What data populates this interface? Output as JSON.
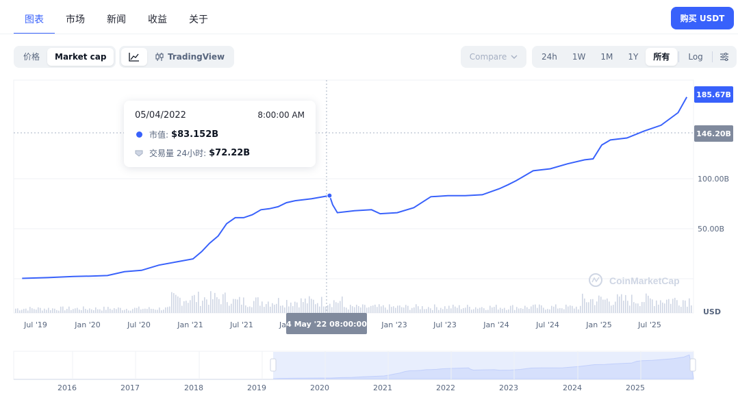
{
  "nav": {
    "tabs": [
      {
        "label": "图表",
        "active": true
      },
      {
        "label": "市场"
      },
      {
        "label": "新闻"
      },
      {
        "label": "收益"
      },
      {
        "label": "关于"
      }
    ],
    "buy_label": "购买 USDT"
  },
  "toolbar": {
    "metric_options": [
      "价格",
      "Market cap"
    ],
    "metric_selected": "Market cap",
    "chart_tools": [
      "line-chart-icon",
      "TradingView"
    ],
    "tradingview_label": "TradingView",
    "compare_label": "Compare",
    "ranges": [
      "24h",
      "1W",
      "1M",
      "1Y",
      "所有"
    ],
    "range_selected": "所有",
    "log_label": "Log",
    "settings_icon": "sliders-icon"
  },
  "tooltip": {
    "date": "05/04/2022",
    "time": "8:00:00 AM",
    "market_cap_label": "市值:",
    "market_cap_value": "$83.152B",
    "volume_label": "交易量 24小时:",
    "volume_value": "$72.22B"
  },
  "crosshair_label": "4 May '22 08:00:00",
  "watermark": "CoinMarketCap",
  "colors": {
    "accent": "#3861fb",
    "line": "#3861fb",
    "grid": "#eff2f5",
    "volume": "#cfd6e4",
    "current_badge": "#3861fb",
    "marker_badge": "#808a9d"
  },
  "chart_data": {
    "type": "line",
    "title": "",
    "xlabel": "",
    "ylabel": "USD",
    "y_ticks": [
      {
        "label": "100.00B",
        "value": 100
      },
      {
        "label": "50.00B",
        "value": 50
      }
    ],
    "x_ticks": [
      "Jul '19",
      "Jan '20",
      "Jul '20",
      "Jan '21",
      "Jul '21",
      "Ja",
      "Jan '23",
      "Jul '23",
      "Jan '24",
      "Jul '24",
      "Jan '25",
      "Jul '25"
    ],
    "current_value_label": "185.67B",
    "marker_value_label": "146.20B",
    "hover_point": {
      "x": "2022-05-04",
      "value": 83.152
    },
    "series": [
      {
        "unit": "billion USD",
        "x": [
          "2019-05",
          "2019-08",
          "2019-11",
          "2020-01",
          "2020-03",
          "2020-05",
          "2020-07",
          "2020-09",
          "2020-11",
          "2021-01",
          "2021-02",
          "2021-03",
          "2021-04",
          "2021-05",
          "2021-06",
          "2021-07",
          "2021-08",
          "2021-09",
          "2021-10",
          "2021-11",
          "2021-12",
          "2022-01",
          "2022-03",
          "2022-05-04",
          "2022-05-15",
          "2022-06",
          "2022-08",
          "2022-10",
          "2022-11",
          "2023-01",
          "2023-03",
          "2023-05",
          "2023-07",
          "2023-09",
          "2023-11",
          "2024-01",
          "2024-02",
          "2024-03",
          "2024-05",
          "2024-07",
          "2024-09",
          "2024-11",
          "2024-12",
          "2025-01",
          "2025-02",
          "2025-04",
          "2025-06",
          "2025-08",
          "2025-10",
          "2025-11"
        ],
        "values": [
          2.3,
          3.0,
          4.1,
          4.5,
          5.0,
          8.7,
          10.0,
          15.0,
          18.0,
          21.0,
          28.0,
          36.0,
          43.0,
          55.0,
          61.0,
          61.0,
          64.0,
          69.0,
          70.0,
          72.0,
          76.0,
          78.0,
          80.0,
          83.152,
          74.0,
          66.0,
          68.0,
          69.0,
          65.0,
          66.0,
          71.0,
          82.0,
          83.0,
          83.0,
          84.0,
          90.0,
          94.0,
          98.0,
          108.0,
          110.0,
          115.0,
          119.0,
          120.0,
          134.0,
          139.0,
          141.0,
          148.0,
          154.0,
          167.0,
          183.0
        ]
      }
    ],
    "volume_note": "24h volume bars shown as grey histogram at bottom",
    "navigator": {
      "years": [
        "2016",
        "2017",
        "2018",
        "2019",
        "2020",
        "2021",
        "2022",
        "2023",
        "2024",
        "2025"
      ],
      "selected_from": "2019",
      "selected_to": "2025"
    },
    "grid": true,
    "legend": "none"
  }
}
